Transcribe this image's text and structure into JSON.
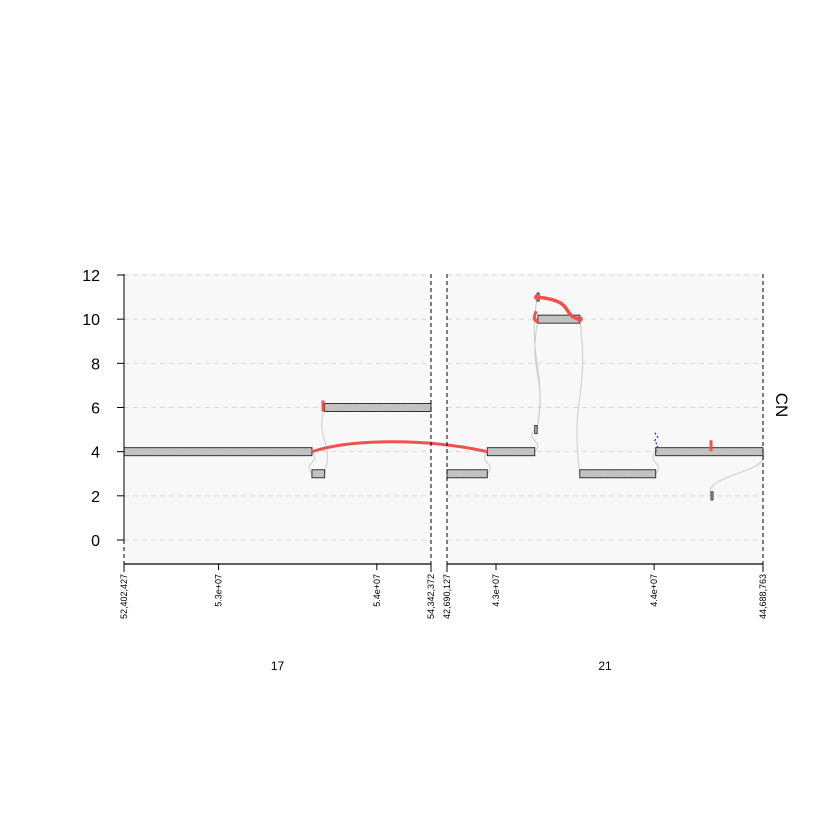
{
  "chart_data": {
    "type": "genome-graph",
    "ylabel": "CN",
    "ylim": [
      -1.2,
      12
    ],
    "yticks": [
      0,
      2,
      4,
      6,
      8,
      10,
      12
    ],
    "grid": true,
    "panels": [
      {
        "chromosome": "17",
        "xlim": [
          52402427,
          54342372
        ],
        "tick_values": [
          52402427,
          53000000,
          54000000,
          54342372
        ],
        "tick_labels": [
          "52,402,427",
          "5.3e+07",
          "5.4e+07",
          "54,342,372"
        ]
      },
      {
        "chromosome": "21",
        "xlim": [
          42690127,
          44688763
        ],
        "tick_values": [
          42690127,
          43000000,
          44000000,
          44688763
        ],
        "tick_labels": [
          "42,690,127",
          "4.3e+07",
          "4.4e+07",
          "44,688,763"
        ]
      }
    ],
    "segments": [
      {
        "id": "s1",
        "chrom": "17",
        "start": 52402427,
        "end": 53590000,
        "cn": 4
      },
      {
        "id": "s2",
        "chrom": "17",
        "start": 53590000,
        "end": 53670000,
        "cn": 3
      },
      {
        "id": "s3",
        "chrom": "17",
        "start": 53670000,
        "end": 54342372,
        "cn": 6
      },
      {
        "id": "s4",
        "chrom": "21",
        "start": 42690127,
        "end": 42945000,
        "cn": 3
      },
      {
        "id": "s5",
        "chrom": "21",
        "start": 42945000,
        "end": 43245000,
        "cn": 4
      },
      {
        "id": "s6",
        "chrom": "21",
        "start": 43245000,
        "end": 43260000,
        "cn": 5
      },
      {
        "id": "s7",
        "chrom": "21",
        "start": 43260000,
        "end": 43265000,
        "cn": 11
      },
      {
        "id": "s8",
        "chrom": "21",
        "start": 43265000,
        "end": 43530000,
        "cn": 10
      },
      {
        "id": "s9",
        "chrom": "21",
        "start": 43530000,
        "end": 44010000,
        "cn": 3
      },
      {
        "id": "s10",
        "chrom": "21",
        "start": 44010000,
        "end": 44688763,
        "cn": 4
      },
      {
        "id": "s11",
        "chrom": "21",
        "start": 44360000,
        "end": 44370000,
        "cn": 2
      }
    ],
    "reference_edges": [
      {
        "from": "s1",
        "to": "s2"
      },
      {
        "from": "s2",
        "to": "s3"
      },
      {
        "from": "s4",
        "to": "s5"
      },
      {
        "from": "s5",
        "to": "s6"
      },
      {
        "from": "s6",
        "to": "s7"
      },
      {
        "from": "s6",
        "to": "s8"
      },
      {
        "from": "s8",
        "to": "s9"
      },
      {
        "from": "s9",
        "to": "s10"
      },
      {
        "from": "s10",
        "to": "s11"
      }
    ],
    "alt_edges": [
      {
        "type": "junction",
        "a": {
          "chrom": "17",
          "pos": 53590000,
          "cn": 4
        },
        "b": {
          "chrom": "21",
          "pos": 42945000,
          "cn": 4
        }
      },
      {
        "type": "junction",
        "a": {
          "chrom": "21",
          "pos": 43260000,
          "cn": 11
        },
        "b": {
          "chrom": "21",
          "pos": 43530000,
          "cn": 10
        }
      },
      {
        "type": "junction",
        "a": {
          "chrom": "21",
          "pos": 43255000,
          "cn": 10
        },
        "b": {
          "chrom": "21",
          "pos": 43265000,
          "cn": 10
        }
      }
    ],
    "loose_ends": [
      {
        "chrom": "17",
        "pos": 53660000,
        "cn": 6,
        "color": "red"
      },
      {
        "chrom": "21",
        "pos": 44360000,
        "cn": 4.2,
        "color": "red"
      }
    ],
    "colors": {
      "alt_edge": "#f05050",
      "segment_fill": "#c8c8c8",
      "reference_edge": "#cccccc",
      "background": "#f8f8f8",
      "blue_edge": "#2020d0"
    }
  }
}
